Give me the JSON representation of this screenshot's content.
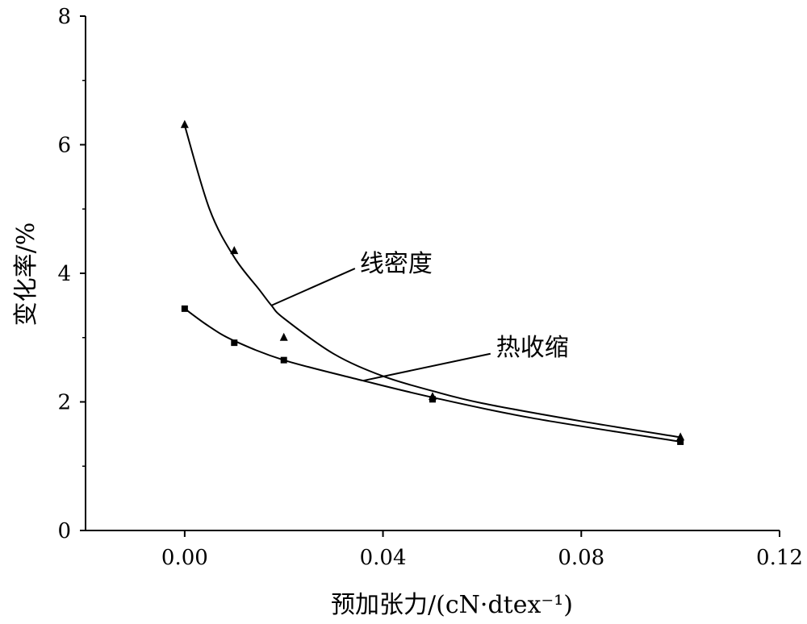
{
  "chart_data": {
    "type": "line",
    "title": "",
    "xlabel": "预加张力/(cN·dtex⁻¹)",
    "ylabel": "变化率/%",
    "xlim": [
      -0.02,
      0.12
    ],
    "ylim": [
      0,
      8
    ],
    "x_ticks": [
      "0.00",
      "0.04",
      "0.08",
      "0.12"
    ],
    "x_tick_values": [
      0.0,
      0.04,
      0.08,
      0.12
    ],
    "y_ticks": [
      "0",
      "2",
      "4",
      "6",
      "8"
    ],
    "y_tick_values": [
      0,
      2,
      4,
      6,
      8
    ],
    "grid": false,
    "series": [
      {
        "name": "线密度",
        "marker": "triangle",
        "x": [
          0.0,
          0.01,
          0.02,
          0.05,
          0.1
        ],
        "values": [
          6.31,
          4.35,
          3.0,
          2.08,
          1.45
        ],
        "fit_x": [
          0,
          0.005,
          0.01,
          0.015,
          0.0175,
          0.02,
          0.03,
          0.04,
          0.05,
          0.06,
          0.08,
          0.1
        ],
        "fit_y": [
          6.3,
          5.0,
          4.25,
          3.75,
          3.5,
          3.3,
          2.75,
          2.4,
          2.17,
          1.98,
          1.7,
          1.45
        ],
        "annotation_at": [
          0.0175,
          3.5
        ],
        "label_at": [
          0.035,
          4.2
        ]
      },
      {
        "name": "热收缩",
        "marker": "square",
        "x": [
          0.0,
          0.01,
          0.02,
          0.05,
          0.1
        ],
        "values": [
          3.45,
          2.92,
          2.65,
          2.04,
          1.38
        ],
        "fit_x": [
          0,
          0.005,
          0.01,
          0.02,
          0.036,
          0.05,
          0.07,
          0.1
        ],
        "fit_y": [
          3.45,
          3.17,
          2.95,
          2.65,
          2.33,
          2.07,
          1.75,
          1.38
        ],
        "annotation_at": [
          0.036,
          2.33
        ],
        "label_at": [
          0.0625,
          3.0
        ]
      }
    ]
  }
}
